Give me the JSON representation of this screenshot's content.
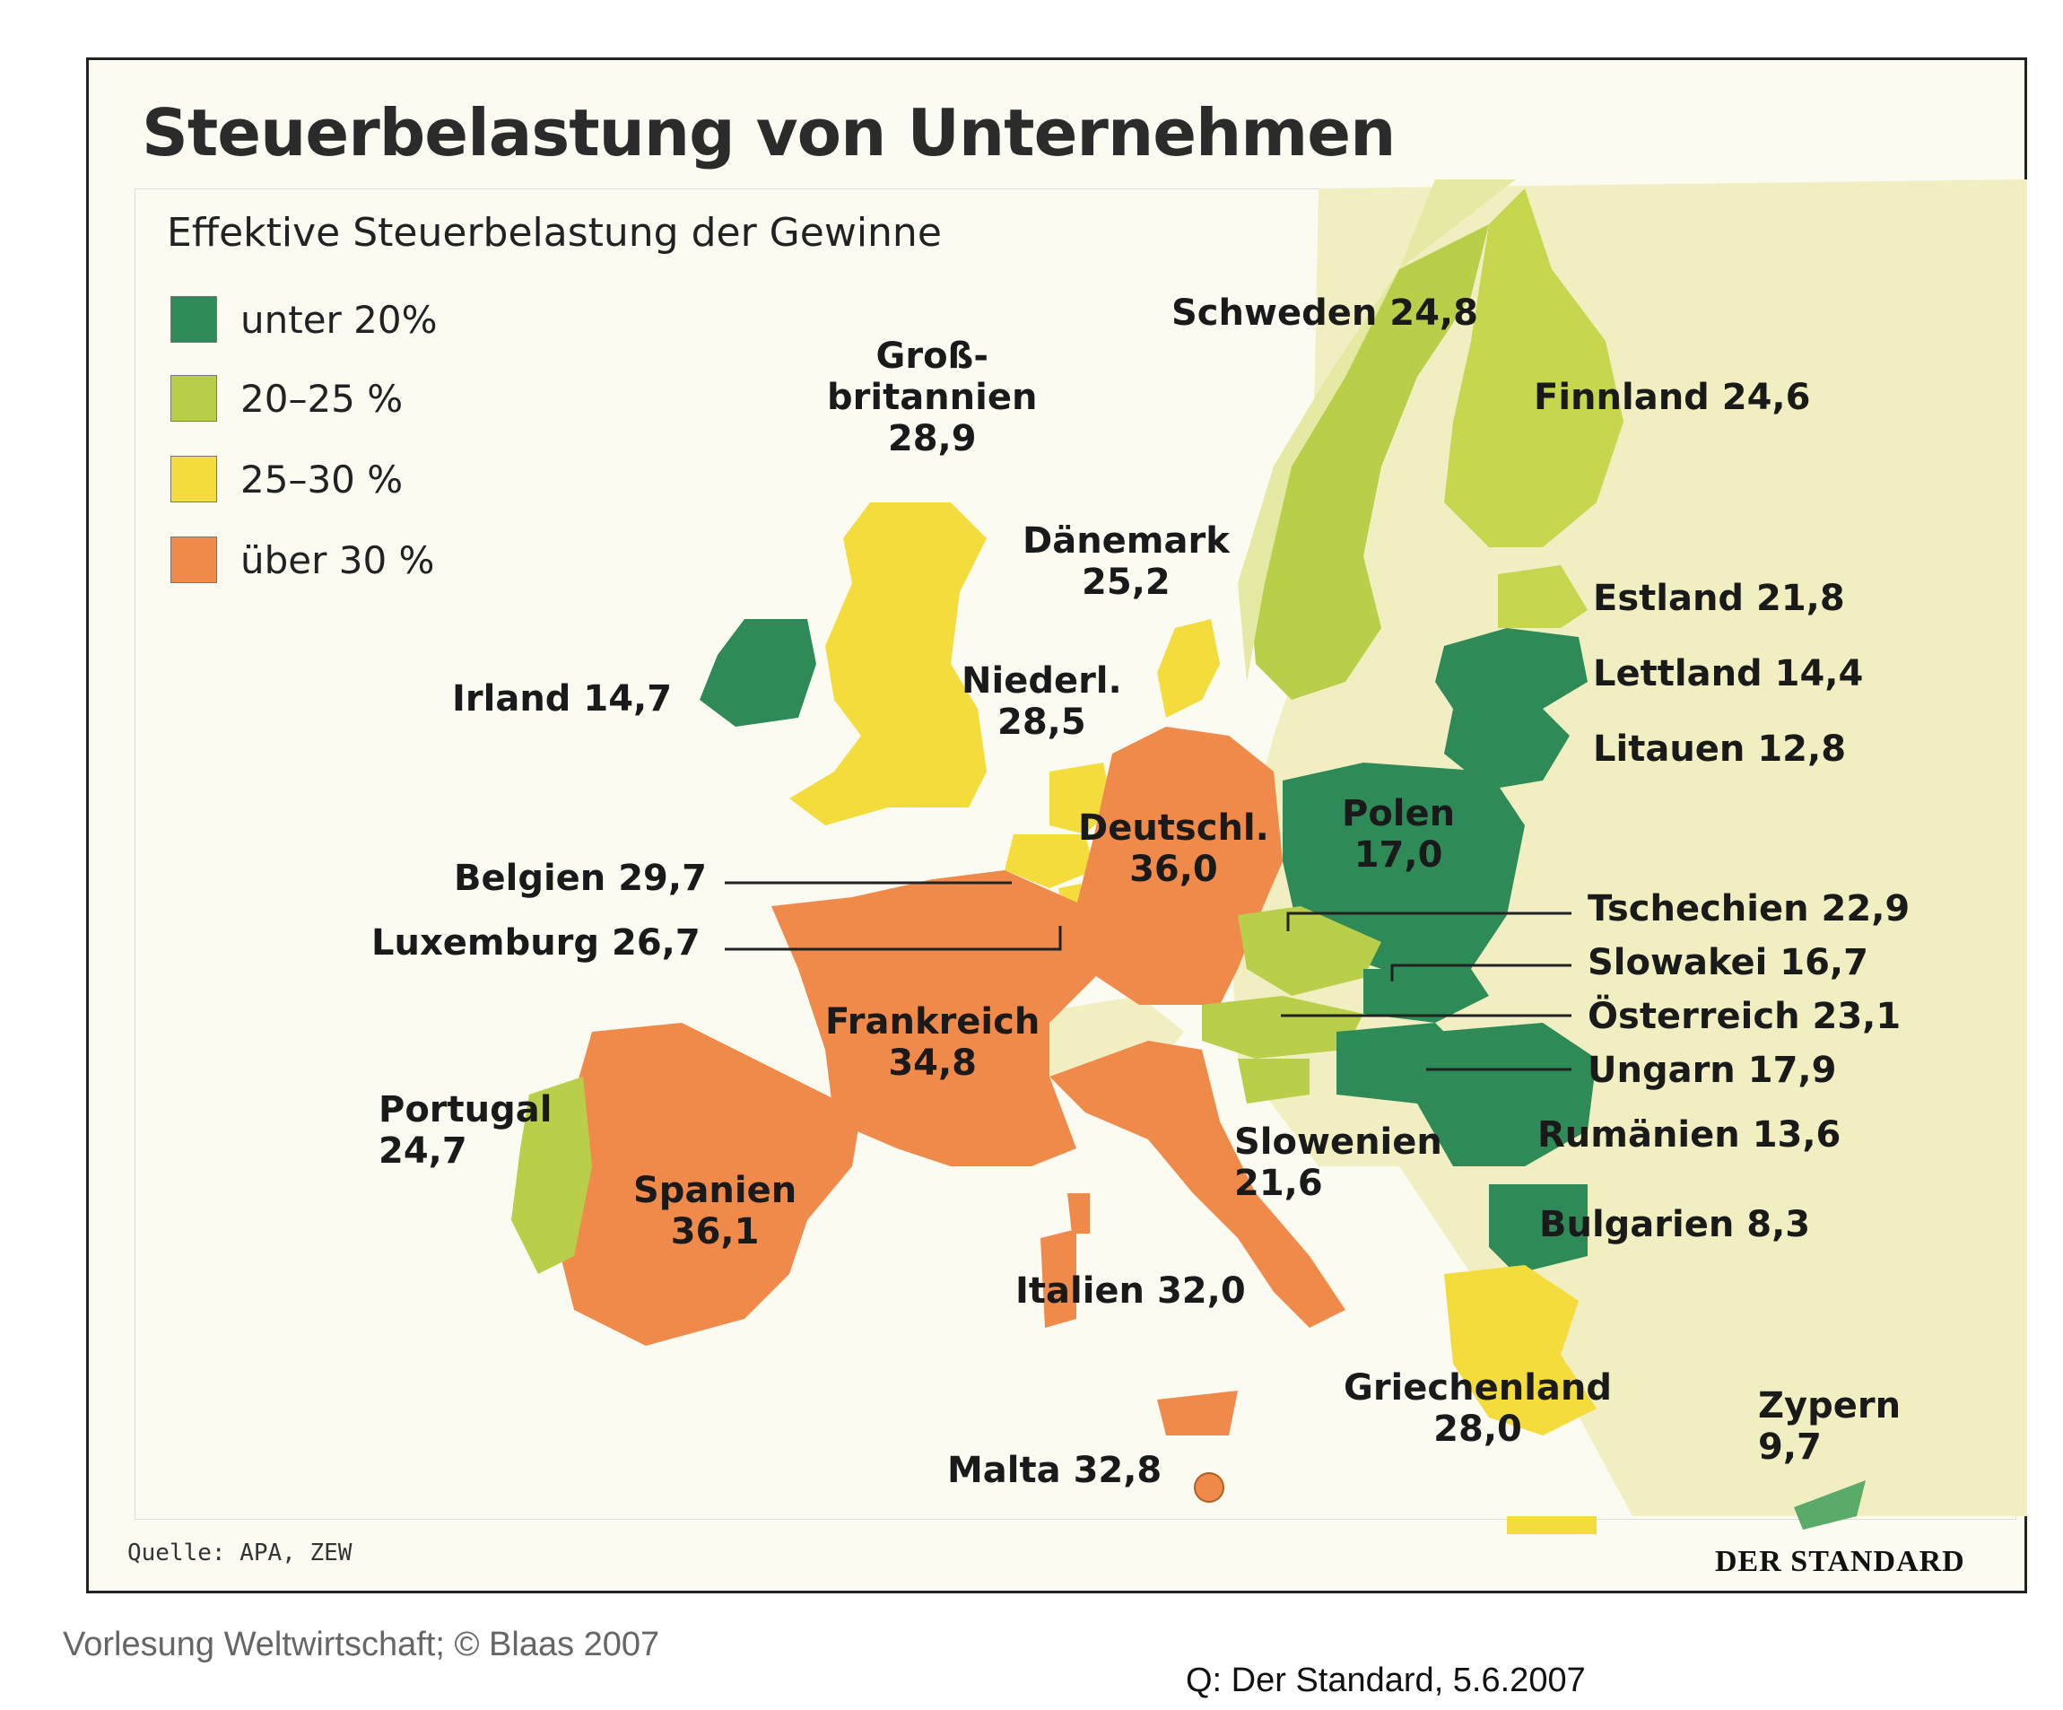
{
  "title": "Steuerbelastung von Unternehmen",
  "subtitle": "Effektive Steuerbelastung der Gewinne",
  "legend": [
    {
      "label": "unter 20%",
      "color": "#2e8b57"
    },
    {
      "label": "20–25 %",
      "color": "#b9cf4a"
    },
    {
      "label": "25–30 %",
      "color": "#f3dc3b"
    },
    {
      "label": "über 30 %",
      "color": "#f08a4b"
    }
  ],
  "countries": {
    "schweden": {
      "name": "Schweden",
      "value": "24,8"
    },
    "finnland": {
      "name": "Finnland",
      "value": "24,6"
    },
    "grossbritannien": {
      "name_line1": "Groß-",
      "name_line2": "britannien",
      "value": "28,9"
    },
    "daenemark": {
      "name": "Dänemark",
      "value": "25,2"
    },
    "estland": {
      "name": "Estland",
      "value": "21,8"
    },
    "lettland": {
      "name": "Lettland",
      "value": "14,4"
    },
    "litauen": {
      "name": "Litauen",
      "value": "12,8"
    },
    "irland": {
      "name": "Irland",
      "value": "14,7"
    },
    "niederlande": {
      "name": "Niederl.",
      "value": "28,5"
    },
    "deutschland": {
      "name": "Deutschl.",
      "value": "36,0"
    },
    "polen": {
      "name": "Polen",
      "value": "17,0"
    },
    "belgien": {
      "name": "Belgien",
      "value": "29,7"
    },
    "luxemburg": {
      "name": "Luxemburg",
      "value": "26,7"
    },
    "tschechien": {
      "name": "Tschechien",
      "value": "22,9"
    },
    "slowakei": {
      "name": "Slowakei",
      "value": "16,7"
    },
    "oesterreich": {
      "name": "Österreich",
      "value": "23,1"
    },
    "ungarn": {
      "name": "Ungarn",
      "value": "17,9"
    },
    "frankreich": {
      "name": "Frankreich",
      "value": "34,8"
    },
    "portugal": {
      "name": "Portugal",
      "value": "24,7"
    },
    "spanien": {
      "name": "Spanien",
      "value": "36,1"
    },
    "slowenien": {
      "name": "Slowenien",
      "value": "21,6"
    },
    "rumaenien": {
      "name": "Rumänien",
      "value": "13,6"
    },
    "bulgarien": {
      "name": "Bulgarien",
      "value": "8,3"
    },
    "italien": {
      "name": "Italien",
      "value": "32,0"
    },
    "griechenland": {
      "name": "Griechenland",
      "value": "28,0"
    },
    "zypern": {
      "name": "Zypern",
      "value": "9,7"
    },
    "malta": {
      "name": "Malta",
      "value": "32,8"
    }
  },
  "source": "Quelle: APA, ZEW",
  "brand": "DER STANDARD",
  "footer_left": "Vorlesung Weltwirtschaft; © Blaas 2007",
  "footer_right": "Q: Der Standard, 5.6.2007"
}
